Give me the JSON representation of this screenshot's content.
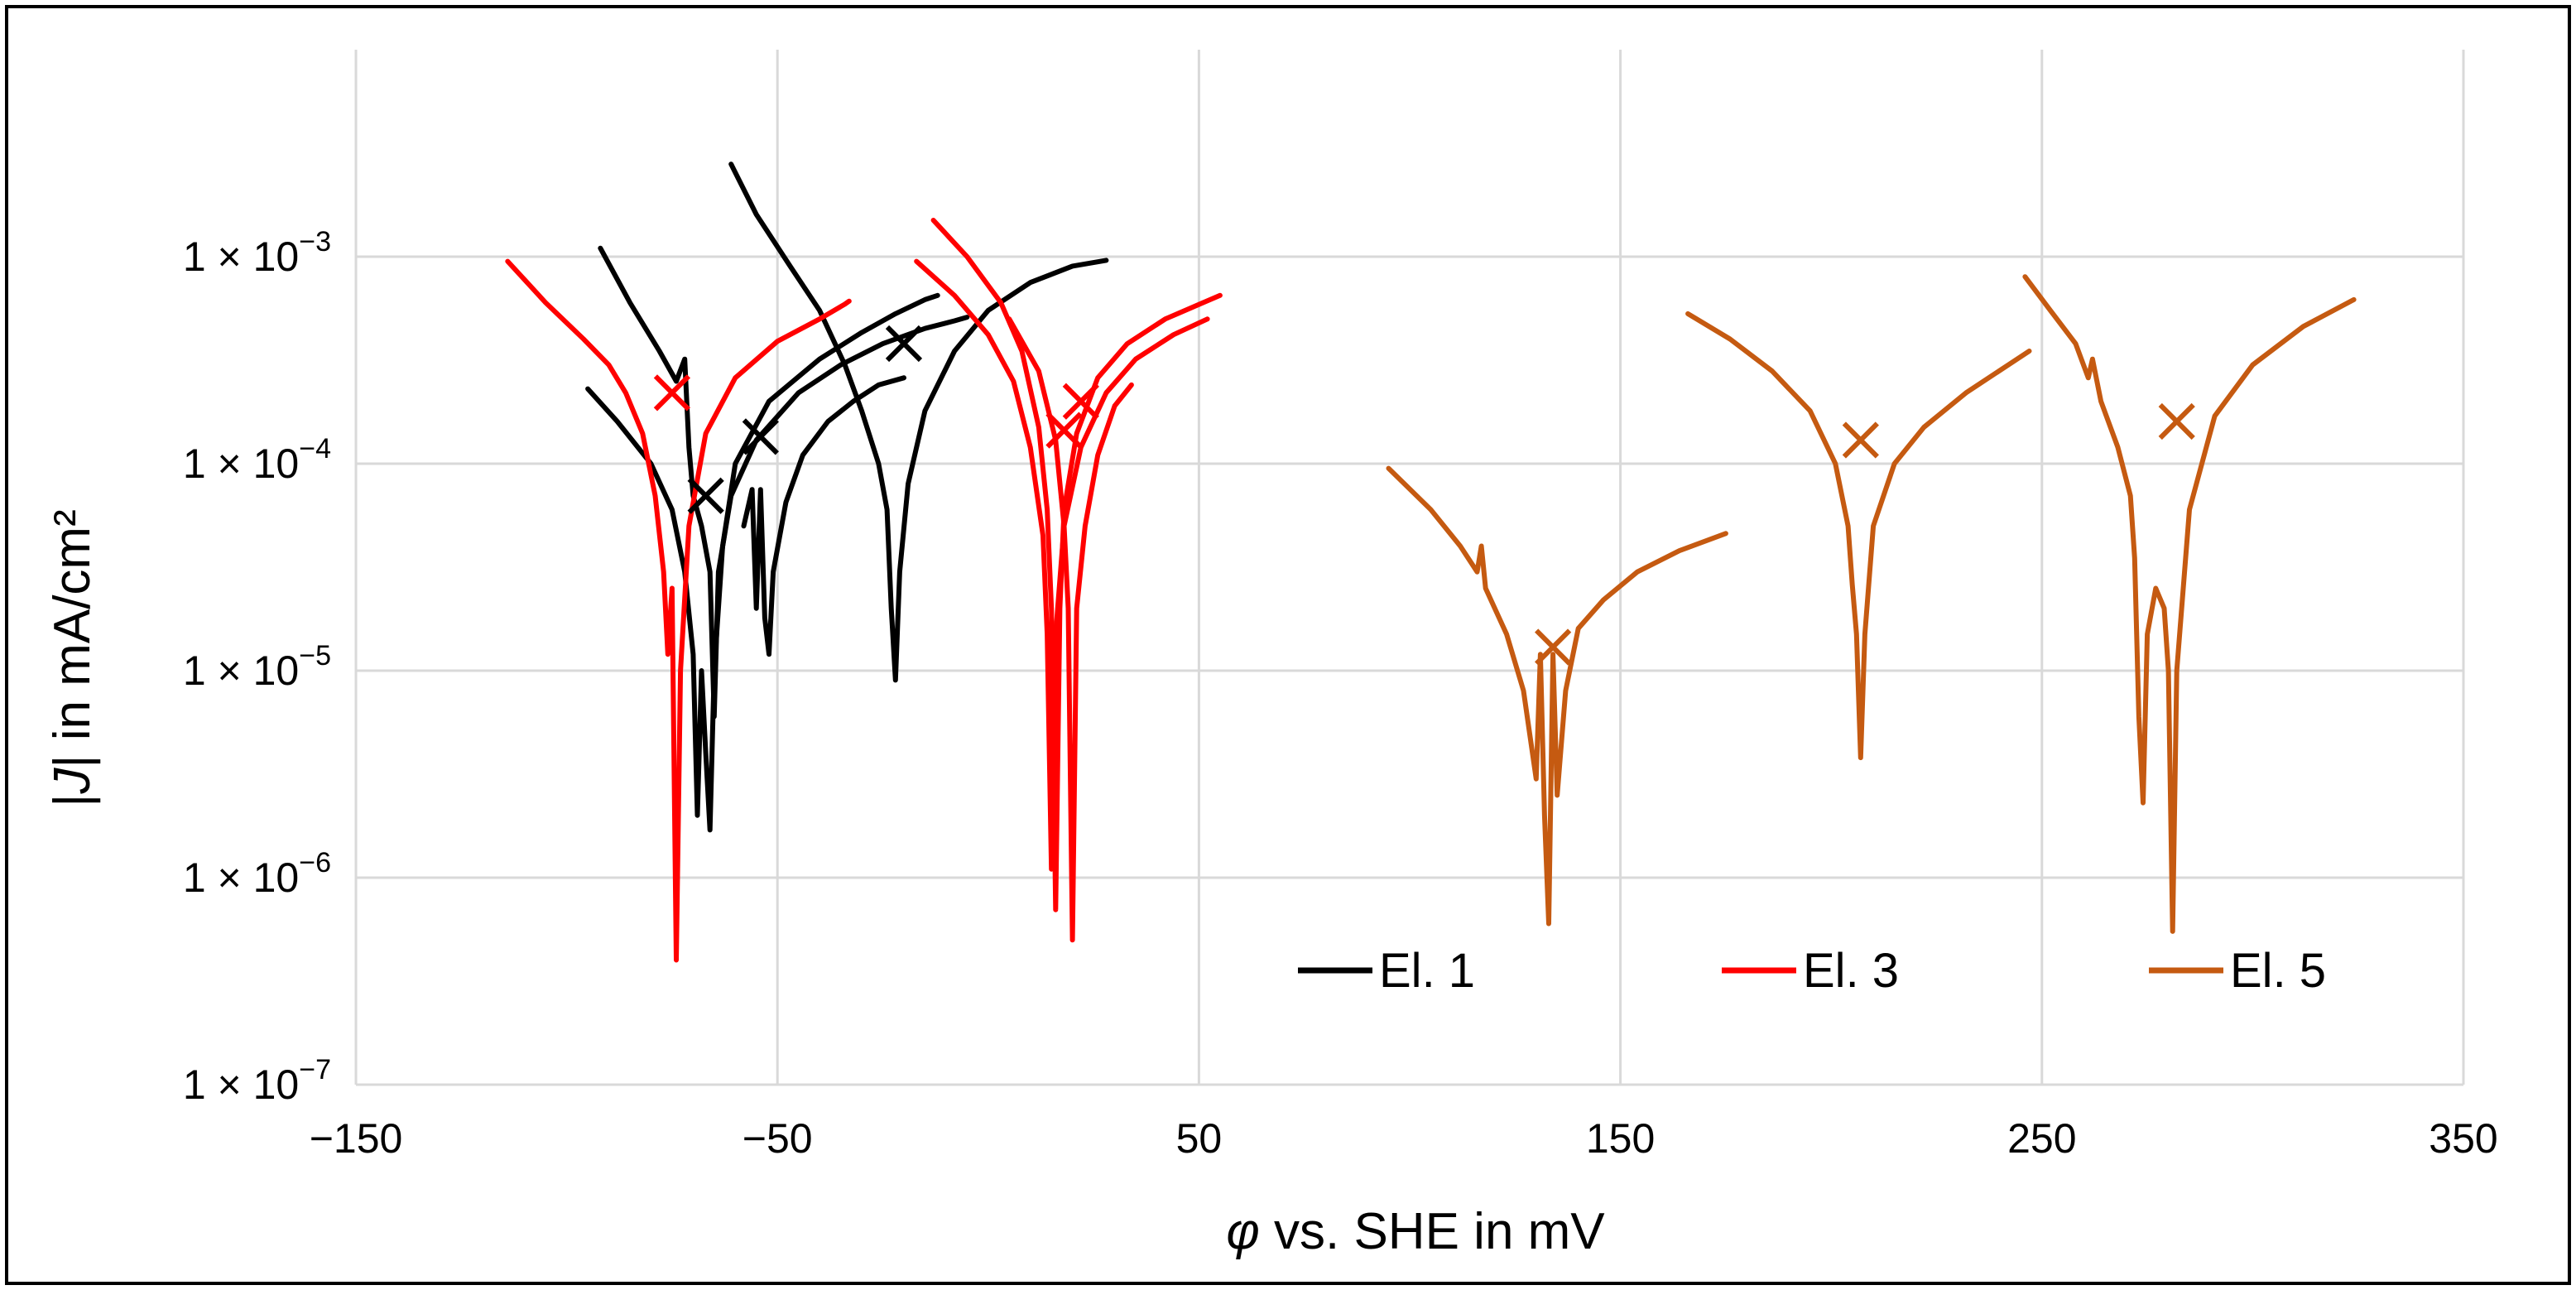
{
  "chart_data": {
    "type": "line",
    "title": "",
    "xlabel_symbol": "φ",
    "xlabel_rest": " vs. SHE in mV",
    "ylabel_pre": "|",
    "ylabel_symbol": "J",
    "ylabel_rest": "| in mA/cm²",
    "x_scale": "linear",
    "y_scale": "log",
    "xlim": [
      -150,
      350
    ],
    "ylim": [
      1e-07,
      0.01
    ],
    "x_ticks": [
      -150,
      -50,
      50,
      150,
      250,
      350
    ],
    "x_tick_labels": [
      "−150",
      "−50",
      "50",
      "150",
      "250",
      "350"
    ],
    "y_ticks": [
      1e-07,
      1e-06,
      1e-05,
      0.0001,
      0.001
    ],
    "y_tick_labels": [
      {
        "base": "1 × 10",
        "exp": "−7"
      },
      {
        "base": "1 × 10",
        "exp": "−6"
      },
      {
        "base": "1 × 10",
        "exp": "−5"
      },
      {
        "base": "1 × 10",
        "exp": "−4"
      },
      {
        "base": "1 × 10",
        "exp": "−3"
      }
    ],
    "grid": true,
    "legend_position": "bottom-right",
    "series": [
      {
        "name": "El. 1",
        "color": "#000000",
        "curves": [
          [
            [
              -95,
              0.00023
            ],
            [
              -88,
              0.00016
            ],
            [
              -80,
              0.0001
            ],
            [
              -75,
              6e-05
            ],
            [
              -72,
              3e-05
            ],
            [
              -70,
              1.2e-05
            ],
            [
              -69,
              2e-06
            ],
            [
              -68,
              1e-05
            ],
            [
              -67,
              4e-06
            ],
            [
              -66,
              1.7e-06
            ],
            [
              -65,
              1e-05
            ],
            [
              -63,
              4e-05
            ],
            [
              -60,
              0.0001
            ],
            [
              -52,
              0.0002
            ],
            [
              -40,
              0.00032
            ],
            [
              -30,
              0.00043
            ],
            [
              -22,
              0.00053
            ],
            [
              -15,
              0.00062
            ],
            [
              -12,
              0.00065
            ]
          ],
          [
            [
              -92,
              0.0011
            ],
            [
              -85,
              0.0006
            ],
            [
              -78,
              0.00035
            ],
            [
              -74,
              0.00025
            ],
            [
              -72,
              0.00032
            ],
            [
              -71,
              0.00012
            ],
            [
              -70,
              7e-05
            ],
            [
              -68,
              5e-05
            ],
            [
              -66,
              3e-05
            ],
            [
              -65,
              6e-06
            ],
            [
              -64,
              3e-05
            ],
            [
              -61,
              7e-05
            ],
            [
              -55,
              0.00013
            ],
            [
              -45,
              0.00022
            ],
            [
              -35,
              0.0003
            ],
            [
              -25,
              0.00038
            ],
            [
              -15,
              0.00045
            ],
            [
              -8,
              0.00049
            ],
            [
              -5,
              0.00051
            ]
          ],
          [
            [
              -61,
              0.0028
            ],
            [
              -55,
              0.0016
            ],
            [
              -47,
              0.0009
            ],
            [
              -40,
              0.00055
            ],
            [
              -34,
              0.0003
            ],
            [
              -30,
              0.00018
            ],
            [
              -26,
              0.0001
            ],
            [
              -24,
              6e-05
            ],
            [
              -23,
              2e-05
            ],
            [
              -22,
              9e-06
            ],
            [
              -21,
              3e-05
            ],
            [
              -19,
              8e-05
            ],
            [
              -15,
              0.00018
            ],
            [
              -8,
              0.00035
            ],
            [
              0,
              0.00055
            ],
            [
              10,
              0.00075
            ],
            [
              20,
              0.0009
            ],
            [
              28,
              0.00096
            ]
          ],
          [
            [
              -58,
              5e-05
            ],
            [
              -56,
              7.5e-05
            ],
            [
              -55,
              2e-05
            ],
            [
              -54,
              7.5e-05
            ],
            [
              -53,
              1.8e-05
            ],
            [
              -52,
              1.2e-05
            ],
            [
              -51,
              3e-05
            ],
            [
              -48,
              6.5e-05
            ],
            [
              -44,
              0.00011
            ],
            [
              -38,
              0.00016
            ],
            [
              -32,
              0.0002
            ],
            [
              -26,
              0.00024
            ],
            [
              -20,
              0.00026
            ]
          ]
        ],
        "markers": [
          [
            -67,
            7e-05
          ],
          [
            -54,
            0.000135
          ],
          [
            -20,
            0.00038
          ]
        ]
      },
      {
        "name": "El. 3",
        "color": "#ff0000",
        "curves": [
          [
            [
              -114,
              0.00095
            ],
            [
              -105,
              0.0006
            ],
            [
              -96,
              0.0004
            ],
            [
              -90,
              0.0003
            ],
            [
              -86,
              0.00022
            ],
            [
              -82,
              0.00014
            ],
            [
              -79,
              7e-05
            ],
            [
              -77,
              3e-05
            ],
            [
              -76,
              1.2e-05
            ],
            [
              -75,
              2.5e-05
            ],
            [
              -74,
              4e-07
            ],
            [
              -73,
              1e-05
            ],
            [
              -71,
              5e-05
            ],
            [
              -67,
              0.00014
            ],
            [
              -60,
              0.00026
            ],
            [
              -50,
              0.00039
            ],
            [
              -40,
              0.0005
            ],
            [
              -34,
              0.00059
            ],
            [
              -33,
              0.00061
            ]
          ],
          [
            [
              -13,
              0.0015
            ],
            [
              -5,
              0.001
            ],
            [
              3,
              0.0006
            ],
            [
              8,
              0.00035
            ],
            [
              12,
              0.00015
            ],
            [
              14,
              6e-05
            ],
            [
              15,
              2e-05
            ],
            [
              16,
              7e-07
            ],
            [
              17,
              2e-05
            ],
            [
              18,
              6e-05
            ],
            [
              21,
              0.00014
            ],
            [
              26,
              0.00026
            ],
            [
              33,
              0.00038
            ],
            [
              42,
              0.0005
            ],
            [
              51,
              0.0006
            ],
            [
              55,
              0.00065
            ]
          ],
          [
            [
              -17,
              0.00095
            ],
            [
              -8,
              0.00065
            ],
            [
              0,
              0.00042
            ],
            [
              6,
              0.00025
            ],
            [
              10,
              0.00012
            ],
            [
              13,
              4.5e-05
            ],
            [
              14,
              1.5e-05
            ],
            [
              15,
              1.1e-06
            ],
            [
              16,
              1.5e-05
            ],
            [
              18,
              5e-05
            ],
            [
              22,
              0.00012
            ],
            [
              28,
              0.00022
            ],
            [
              35,
              0.00032
            ],
            [
              44,
              0.00042
            ],
            [
              52,
              0.0005
            ]
          ],
          [
            [
              5,
              0.0005
            ],
            [
              12,
              0.00028
            ],
            [
              16,
              0.00013
            ],
            [
              18,
              5e-05
            ],
            [
              19,
              2e-05
            ],
            [
              20,
              5e-07
            ],
            [
              21,
              2e-05
            ],
            [
              23,
              5e-05
            ],
            [
              26,
              0.00011
            ],
            [
              30,
              0.00019
            ],
            [
              34,
              0.00024
            ]
          ]
        ],
        "markers": [
          [
            -75,
            0.00022
          ],
          [
            18,
            0.000145
          ],
          [
            22,
            0.0002
          ]
        ]
      },
      {
        "name": "El. 5",
        "color": "#c55a11",
        "curves": [
          [
            [
              95,
              9.5e-05
            ],
            [
              105,
              6e-05
            ],
            [
              112,
              4e-05
            ],
            [
              116,
              3e-05
            ],
            [
              117,
              4e-05
            ],
            [
              118,
              2.5e-05
            ],
            [
              123,
              1.5e-05
            ],
            [
              127,
              8e-06
            ],
            [
              130,
              3e-06
            ],
            [
              131,
              1.2e-05
            ],
            [
              132,
              2e-06
            ],
            [
              133,
              6e-07
            ],
            [
              134,
              1.2e-05
            ],
            [
              135,
              2.5e-06
            ],
            [
              137,
              8e-06
            ],
            [
              140,
              1.6e-05
            ],
            [
              146,
              2.2e-05
            ],
            [
              154,
              3e-05
            ],
            [
              164,
              3.8e-05
            ],
            [
              175,
              4.6e-05
            ]
          ],
          [
            [
              166,
              0.00053
            ],
            [
              176,
              0.0004
            ],
            [
              186,
              0.00028
            ],
            [
              195,
              0.00018
            ],
            [
              201,
              0.0001
            ],
            [
              204,
              5e-05
            ],
            [
              205,
              2.6e-05
            ],
            [
              206,
              1.5e-05
            ],
            [
              207,
              3.8e-06
            ],
            [
              208,
              1.5e-05
            ],
            [
              210,
              5e-05
            ],
            [
              215,
              0.0001
            ],
            [
              222,
              0.00015
            ],
            [
              232,
              0.00022
            ],
            [
              242,
              0.0003
            ],
            [
              247,
              0.00035
            ]
          ],
          [
            [
              246,
              0.0008
            ],
            [
              252,
              0.00055
            ],
            [
              258,
              0.00038
            ],
            [
              261,
              0.00026
            ],
            [
              262,
              0.00032
            ],
            [
              264,
              0.0002
            ],
            [
              268,
              0.00012
            ],
            [
              271,
              7e-05
            ],
            [
              272,
              3.5e-05
            ],
            [
              273,
              6e-06
            ],
            [
              274,
              2.3e-06
            ],
            [
              275,
              1.5e-05
            ],
            [
              277,
              2.5e-05
            ],
            [
              279,
              2e-05
            ],
            [
              280,
              1e-05
            ],
            [
              281,
              5.5e-07
            ],
            [
              282,
              1e-05
            ],
            [
              285,
              6e-05
            ],
            [
              291,
              0.00017
            ],
            [
              300,
              0.0003
            ],
            [
              312,
              0.00046
            ],
            [
              324,
              0.00062
            ]
          ]
        ],
        "markers": [
          [
            134,
            1.3e-05
          ],
          [
            207,
            0.00013
          ],
          [
            282,
            0.00016
          ]
        ]
      }
    ]
  }
}
